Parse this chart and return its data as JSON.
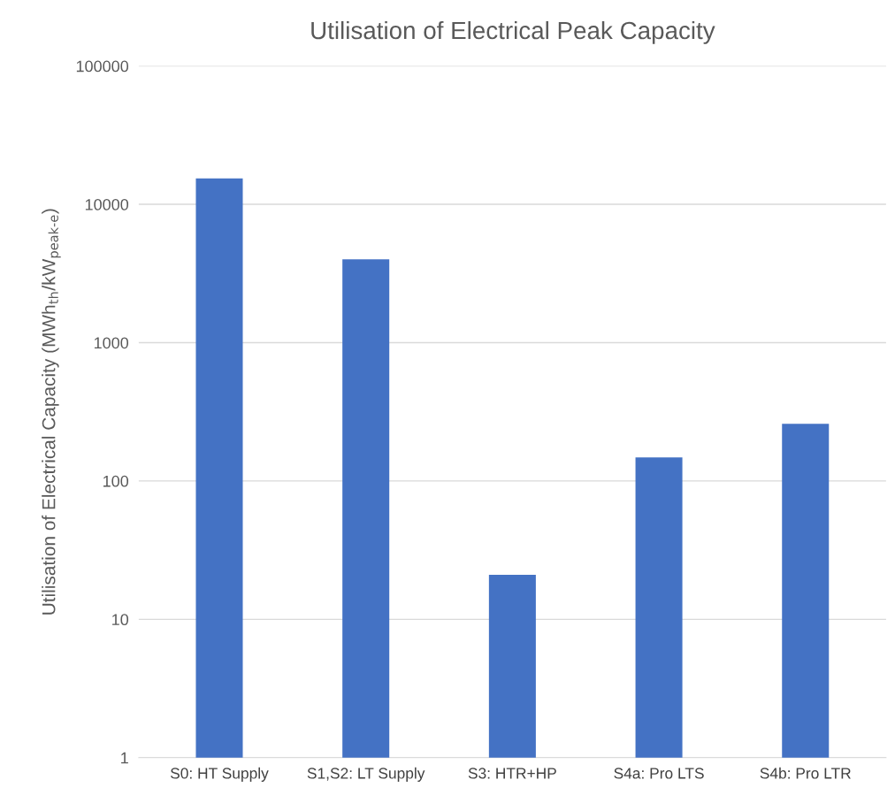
{
  "chart_data": {
    "type": "bar",
    "title": "Utilisation of Electrical Peak Capacity",
    "ylabel": "Utilisation of Electrical Capacity (MWh$_{th}$/kW$_{peak-e}$)",
    "categories": [
      "S0: HT Supply",
      "S1,S2: LT Supply",
      "S3: HTR+HP",
      "S4a: Pro LTS",
      "S4b: Pro LTR"
    ],
    "values": [
      15400,
      4000,
      21,
      148,
      259
    ],
    "color": "#4472c4",
    "log": "y",
    "ylim": [
      1,
      100000
    ],
    "yticks": [
      1,
      10,
      100,
      1000,
      10000,
      100000
    ],
    "grid": "y",
    "legend": false
  }
}
